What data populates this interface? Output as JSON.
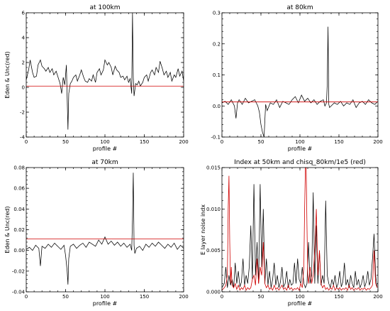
{
  "chart_data": [
    {
      "type": "line",
      "title": "at 100km",
      "xlabel": "profile #",
      "ylabel": "Eden & Unc(red)",
      "xlim": [
        0,
        200
      ],
      "ylim": [
        -4,
        6
      ],
      "xticks": [
        0,
        50,
        100,
        150,
        200
      ],
      "yticks": [
        -4,
        -2,
        0,
        2,
        4,
        6
      ],
      "series": [
        {
          "color": "#000000",
          "x": [
            0,
            3,
            5,
            8,
            10,
            13,
            15,
            18,
            20,
            23,
            25,
            28,
            30,
            33,
            35,
            38,
            40,
            43,
            45,
            47,
            49,
            51,
            53,
            54,
            56,
            58,
            60,
            63,
            65,
            68,
            70,
            73,
            75,
            78,
            80,
            83,
            85,
            88,
            90,
            93,
            95,
            98,
            100,
            103,
            105,
            108,
            110,
            113,
            115,
            118,
            120,
            123,
            125,
            128,
            130,
            132,
            134,
            135,
            136,
            137,
            139,
            141,
            143,
            145,
            148,
            150,
            153,
            155,
            158,
            160,
            163,
            165,
            168,
            170,
            173,
            175,
            178,
            180,
            183,
            185,
            188,
            190,
            193,
            195,
            198,
            200
          ],
          "y": [
            0.6,
            1.4,
            2.2,
            1.2,
            0.8,
            0.9,
            1.8,
            2.2,
            1.7,
            1.5,
            1.3,
            1.6,
            1.2,
            1.5,
            1.0,
            1.3,
            0.9,
            0.3,
            -0.5,
            0.8,
            0.2,
            1.8,
            -3.4,
            -0.5,
            0.3,
            0.5,
            0.8,
            1.0,
            0.5,
            1.0,
            1.4,
            0.8,
            0.5,
            0.4,
            0.7,
            0.5,
            1.0,
            0.4,
            1.2,
            1.5,
            1.0,
            1.4,
            2.2,
            1.8,
            2.0,
            1.6,
            1.0,
            1.7,
            1.4,
            1.2,
            0.8,
            0.9,
            0.6,
            0.9,
            0.4,
            0.7,
            -0.5,
            6.0,
            0.8,
            -0.7,
            0.3,
            0.2,
            0.5,
            0.1,
            0.4,
            0.8,
            1.0,
            0.5,
            1.2,
            1.4,
            1.0,
            1.6,
            1.2,
            2.1,
            1.5,
            1.0,
            1.3,
            0.8,
            1.2,
            0.5,
            1.0,
            0.8,
            1.5,
            0.9,
            1.3,
            0.5
          ]
        },
        {
          "color": "#d00000",
          "x": [
            0,
            200
          ],
          "y": [
            0.1,
            0.1
          ]
        }
      ]
    },
    {
      "type": "line",
      "title": "at 80km",
      "xlabel": "profile #",
      "ylabel": "",
      "xlim": [
        0,
        200
      ],
      "ylim": [
        -0.1,
        0.3
      ],
      "xticks": [
        0,
        50,
        100,
        150,
        200
      ],
      "yticks": [
        -0.1,
        0.0,
        0.1,
        0.2,
        0.3
      ],
      "ytick_labels": [
        "-0.1",
        "0.0",
        "0.1",
        "0.2",
        "0.3"
      ],
      "series": [
        {
          "color": "#000000",
          "x": [
            0,
            4,
            8,
            12,
            16,
            18,
            20,
            22,
            26,
            30,
            34,
            38,
            42,
            46,
            48,
            50,
            52,
            54,
            56,
            58,
            62,
            66,
            70,
            74,
            78,
            82,
            86,
            90,
            94,
            98,
            102,
            106,
            110,
            114,
            118,
            122,
            126,
            130,
            132,
            134,
            135,
            136,
            137,
            138,
            140,
            144,
            148,
            152,
            156,
            160,
            164,
            168,
            172,
            176,
            180,
            184,
            188,
            192,
            196,
            200
          ],
          "y": [
            0.01,
            0.015,
            0.005,
            0.02,
            0.0,
            -0.04,
            0.01,
            0.02,
            0.005,
            0.025,
            0.01,
            0.015,
            0.02,
            0.0,
            -0.02,
            -0.06,
            -0.085,
            -0.1,
            0.005,
            -0.015,
            0.01,
            0.005,
            0.02,
            -0.005,
            0.015,
            0.01,
            0.005,
            0.02,
            0.03,
            0.01,
            0.035,
            0.015,
            0.025,
            0.01,
            0.02,
            0.005,
            0.015,
            0.02,
            0.0,
            0.01,
            0.07,
            0.255,
            0.005,
            -0.005,
            0.0,
            0.01,
            0.005,
            0.015,
            0.0,
            0.01,
            0.005,
            0.02,
            -0.005,
            0.01,
            0.015,
            0.005,
            0.02,
            0.01,
            0.005,
            0.015
          ]
        },
        {
          "color": "#d00000",
          "x": [
            0,
            200
          ],
          "y": [
            0.013,
            0.013
          ]
        }
      ]
    },
    {
      "type": "line",
      "title": "at 70km",
      "xlabel": "profile #",
      "ylabel": "Eden & Unc(red)",
      "xlim": [
        0,
        200
      ],
      "ylim": [
        -0.04,
        0.08
      ],
      "xticks": [
        0,
        50,
        100,
        150,
        200
      ],
      "yticks": [
        -0.04,
        -0.02,
        0.0,
        0.02,
        0.04,
        0.06,
        0.08
      ],
      "ytick_labels": [
        "-0.04",
        "-0.02",
        "0.00",
        "0.02",
        "0.04",
        "0.06",
        "0.08"
      ],
      "series": [
        {
          "color": "#000000",
          "x": [
            0,
            4,
            8,
            12,
            16,
            18,
            20,
            24,
            28,
            32,
            36,
            40,
            44,
            48,
            50,
            52,
            53,
            54,
            56,
            60,
            64,
            68,
            72,
            76,
            80,
            84,
            88,
            92,
            96,
            100,
            104,
            108,
            112,
            116,
            120,
            124,
            128,
            132,
            134,
            135,
            136,
            137,
            138,
            140,
            144,
            148,
            152,
            156,
            160,
            164,
            168,
            172,
            176,
            180,
            184,
            188,
            192,
            196,
            200
          ],
          "y": [
            0.001,
            0.003,
            0.0,
            0.005,
            0.002,
            -0.015,
            0.004,
            0.002,
            0.006,
            0.003,
            0.007,
            0.004,
            0.001,
            0.005,
            -0.005,
            -0.02,
            -0.033,
            -0.008,
            0.004,
            0.006,
            0.002,
            0.005,
            0.007,
            0.003,
            0.008,
            0.006,
            0.004,
            0.01,
            0.006,
            0.013,
            0.006,
            0.009,
            0.005,
            0.008,
            0.004,
            0.007,
            0.003,
            0.006,
            0.0,
            0.03,
            0.075,
            0.005,
            -0.003,
            0.002,
            0.004,
            0.0,
            0.006,
            0.003,
            0.007,
            0.004,
            0.008,
            0.005,
            0.002,
            0.006,
            0.003,
            0.007,
            0.001,
            0.005,
            0.002
          ]
        },
        {
          "color": "#d00000",
          "x": [
            0,
            200
          ],
          "y": [
            0.011,
            0.011
          ]
        }
      ]
    },
    {
      "type": "line",
      "title": "Index at 50km and chisq_80km/1e5 (red)",
      "xlabel": "profile #",
      "ylabel": "E layer noise indx",
      "xlim": [
        0,
        200
      ],
      "ylim": [
        0,
        0.015
      ],
      "xticks": [
        0,
        50,
        100,
        150,
        200
      ],
      "yticks": [
        0,
        0.005,
        0.01,
        0.015
      ],
      "ytick_labels": [
        "0.000",
        "0.005",
        "0.010",
        "0.015"
      ],
      "series": [
        {
          "color": "#000000",
          "x": [
            0,
            3,
            5,
            7,
            9,
            11,
            13,
            15,
            17,
            19,
            21,
            23,
            25,
            27,
            29,
            31,
            33,
            35,
            37,
            39,
            41,
            43,
            45,
            47,
            49,
            51,
            53,
            55,
            57,
            59,
            61,
            63,
            65,
            67,
            69,
            71,
            73,
            75,
            77,
            79,
            81,
            83,
            85,
            87,
            89,
            91,
            93,
            95,
            97,
            99,
            101,
            103,
            105,
            107,
            109,
            111,
            113,
            115,
            117,
            119,
            121,
            123,
            125,
            127,
            129,
            131,
            133,
            135,
            137,
            139,
            141,
            143,
            145,
            147,
            149,
            151,
            153,
            155,
            157,
            159,
            161,
            163,
            165,
            167,
            169,
            171,
            173,
            175,
            177,
            179,
            181,
            183,
            185,
            187,
            189,
            191,
            193,
            195,
            197,
            199
          ],
          "y": [
            0.0005,
            0.001,
            0.003,
            0.0005,
            0.002,
            0.0008,
            0.0015,
            0.0005,
            0.0035,
            0.001,
            0.0025,
            0.0006,
            0.0012,
            0.004,
            0.0008,
            0.002,
            0.001,
            0.003,
            0.008,
            0.0015,
            0.013,
            0.002,
            0.006,
            0.001,
            0.013,
            0.003,
            0.01,
            0.001,
            0.004,
            0.0008,
            0.0025,
            0.0005,
            0.0015,
            0.0035,
            0.0008,
            0.002,
            0.0005,
            0.0012,
            0.003,
            0.0006,
            0.001,
            0.0025,
            0.0005,
            0.0015,
            0.0008,
            0.001,
            0.0035,
            0.001,
            0.004,
            0.0015,
            0.001,
            0.003,
            0.001,
            0.0005,
            0.001,
            0.006,
            0.001,
            0.002,
            0.012,
            0.001,
            0.008,
            0.001,
            0.005,
            0.0008,
            0.002,
            0.001,
            0.011,
            0.002,
            0.001,
            0.0005,
            0.0015,
            0.0008,
            0.002,
            0.0005,
            0.001,
            0.0025,
            0.0006,
            0.0012,
            0.0035,
            0.0008,
            0.0015,
            0.0005,
            0.002,
            0.001,
            0.0005,
            0.0025,
            0.0008,
            0.0015,
            0.0005,
            0.001,
            0.002,
            0.0006,
            0.0012,
            0.0025,
            0.0008,
            0.0015,
            0.004,
            0.007,
            0.002,
            0.0005
          ]
        },
        {
          "color": "#d00000",
          "x": [
            0,
            3,
            5,
            7,
            8,
            9,
            10,
            11,
            12,
            13,
            15,
            17,
            19,
            21,
            23,
            25,
            27,
            29,
            31,
            33,
            35,
            37,
            39,
            41,
            43,
            45,
            47,
            49,
            51,
            53,
            55,
            57,
            59,
            61,
            63,
            65,
            67,
            69,
            71,
            73,
            75,
            77,
            79,
            81,
            83,
            85,
            87,
            89,
            91,
            93,
            95,
            97,
            99,
            101,
            103,
            105,
            106,
            107,
            108,
            109,
            110,
            111,
            113,
            115,
            117,
            119,
            121,
            123,
            125,
            127,
            129,
            131,
            133,
            135,
            137,
            139,
            141,
            143,
            145,
            147,
            149,
            151,
            153,
            155,
            157,
            159,
            161,
            163,
            165,
            167,
            169,
            171,
            173,
            175,
            177,
            179,
            181,
            183,
            185,
            187,
            189,
            191,
            193,
            195,
            197,
            199
          ],
          "y": [
            0.0002,
            0.0005,
            0.0008,
            0.002,
            0.01,
            0.014,
            0.006,
            0.001,
            0.003,
            0.0008,
            0.0005,
            0.001,
            0.0003,
            0.0008,
            0.0002,
            0.0005,
            0.0003,
            0.0008,
            0.0002,
            0.0005,
            0.0003,
            0.0005,
            0.0015,
            0.002,
            0.0008,
            0.004,
            0.001,
            0.003,
            0.002,
            0.006,
            0.001,
            0.0005,
            0.0008,
            0.0003,
            0.0005,
            0.0002,
            0.0008,
            0.0003,
            0.0005,
            0.0002,
            0.0005,
            0.0008,
            0.0003,
            0.0005,
            0.0002,
            0.0008,
            0.0003,
            0.0005,
            0.0002,
            0.0004,
            0.0003,
            0.0005,
            0.0002,
            0.001,
            0.0005,
            0.003,
            0.01,
            0.015,
            0.015,
            0.008,
            0.002,
            0.001,
            0.003,
            0.001,
            0.002,
            0.005,
            0.01,
            0.002,
            0.005,
            0.001,
            0.0005,
            0.0008,
            0.0003,
            0.0005,
            0.0002,
            0.0005,
            0.0003,
            0.0008,
            0.0002,
            0.0005,
            0.0003,
            0.0005,
            0.0002,
            0.0004,
            0.0003,
            0.0005,
            0.0002,
            0.0008,
            0.0003,
            0.0005,
            0.0002,
            0.0004,
            0.0003,
            0.0005,
            0.0002,
            0.0004,
            0.0003,
            0.0005,
            0.0002,
            0.0004,
            0.0003,
            0.0005,
            0.0008,
            0.005,
            0.001,
            0.0005
          ]
        }
      ]
    }
  ]
}
